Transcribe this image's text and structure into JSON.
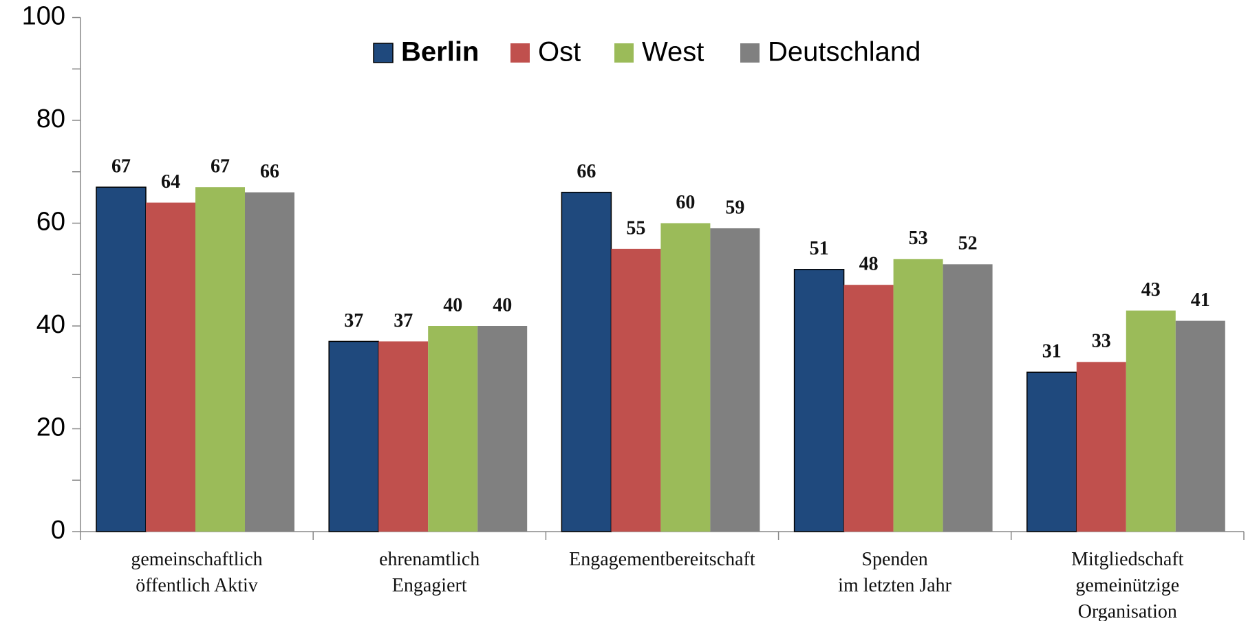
{
  "chart_data": {
    "type": "bar",
    "categories": [
      "gemeinschaftlich\nöffentlich Aktiv",
      "ehrenamtlich\nEngagiert",
      "Engagementbereitschaft",
      "Spenden\nim letzten Jahr",
      "Mitgliedschaft\ngemeinützige\nOrganisation"
    ],
    "series": [
      {
        "name": "Berlin",
        "color": "#1f497d",
        "values": [
          67,
          37,
          66,
          51,
          31
        ]
      },
      {
        "name": "Ost",
        "color": "#c0504d",
        "values": [
          64,
          37,
          55,
          48,
          33
        ]
      },
      {
        "name": "West",
        "color": "#9bbb59",
        "values": [
          67,
          40,
          60,
          53,
          43
        ]
      },
      {
        "name": "Deutschland",
        "color": "#808080",
        "values": [
          66,
          40,
          59,
          52,
          41
        ]
      }
    ],
    "ylim": [
      0,
      100
    ],
    "yticks": [
      0,
      20,
      40,
      60,
      80,
      100
    ],
    "legend": "top"
  }
}
